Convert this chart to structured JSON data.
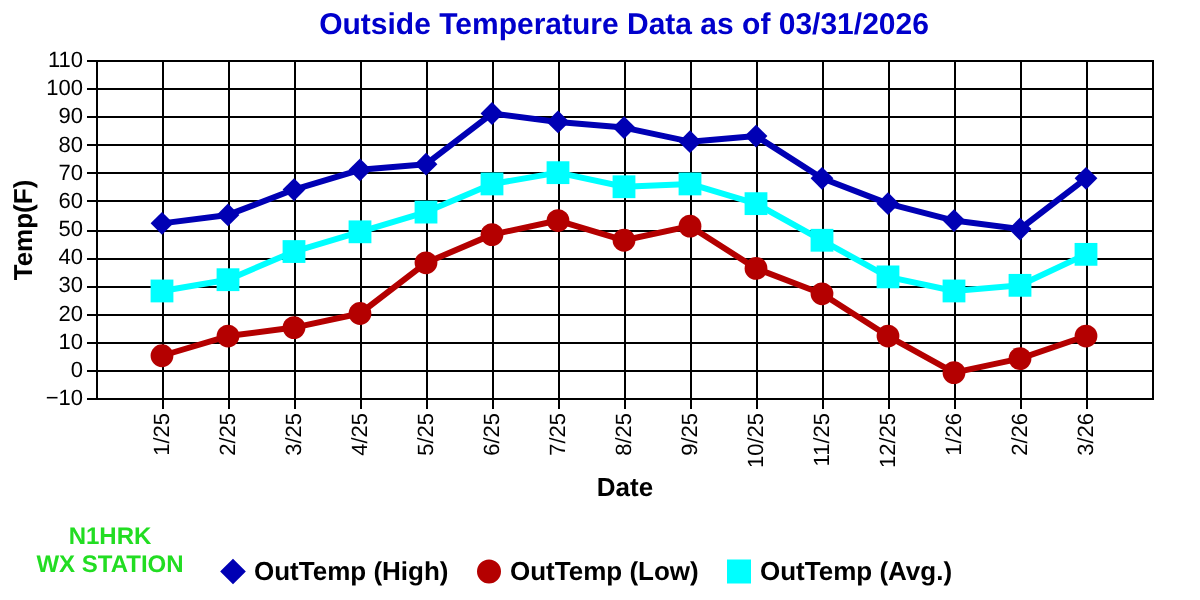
{
  "chart_data": {
    "type": "line",
    "title": "Outside Temperature Data as of 03/31/2026",
    "xlabel": "Date",
    "ylabel": "Temp(F)",
    "categories": [
      "1/25",
      "2/25",
      "3/25",
      "4/25",
      "5/25",
      "6/25",
      "7/25",
      "8/25",
      "9/25",
      "10/25",
      "11/25",
      "12/25",
      "1/26",
      "2/26",
      "3/26"
    ],
    "series": [
      {
        "name": "OutTemp (High)",
        "color": "#0000b4",
        "marker": "diamond",
        "values": [
          52,
          55,
          64,
          71,
          73,
          91,
          88,
          86,
          81,
          83,
          68,
          59,
          53,
          50,
          68
        ]
      },
      {
        "name": "OutTemp (Low)",
        "color": "#b40000",
        "marker": "circle",
        "values": [
          5,
          12,
          15,
          20,
          38,
          48,
          53,
          46,
          51,
          36,
          27,
          12,
          -1,
          4,
          12
        ]
      },
      {
        "name": "OutTemp (Avg.)",
        "color": "#00ffff",
        "marker": "square",
        "values": [
          28,
          32,
          42,
          49,
          56,
          66,
          70,
          65,
          66,
          59,
          46,
          33,
          28,
          30,
          41
        ]
      }
    ],
    "ylim": [
      -10,
      110
    ],
    "yticks": [
      -10,
      0,
      10,
      20,
      30,
      40,
      50,
      60,
      70,
      80,
      90,
      100,
      110
    ],
    "grid": true,
    "legend": "bottom",
    "line_style": "solid",
    "annotations": [
      "N1HRK",
      "WX STATION"
    ]
  }
}
